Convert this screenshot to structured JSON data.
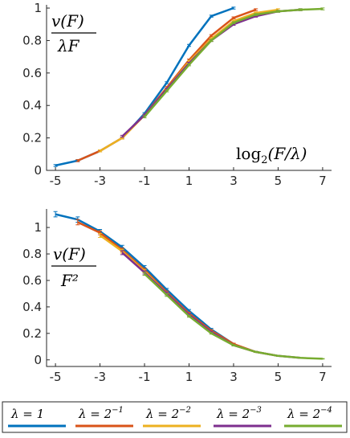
{
  "chart_data": [
    {
      "type": "line",
      "panel": "top",
      "annotation": {
        "numerator": "v(F)",
        "denominator": "λF"
      },
      "xlabel": "log2(F/λ)",
      "ylabel": "",
      "xlim": [
        -5.4,
        7.4
      ],
      "ylim": [
        0,
        1.02
      ],
      "xticks": [
        -5,
        -3,
        -1,
        1,
        3,
        5,
        7
      ],
      "yticks": [
        0,
        0.2,
        0.4,
        0.6,
        0.8,
        1
      ],
      "ytick_labels": [
        "0",
        "0.2",
        "0.4",
        "0.6",
        "0.8",
        "1"
      ],
      "series": [
        {
          "name": "λ = 1",
          "color": "#0072BD",
          "x": [
            -5,
            -4,
            -3,
            -2,
            -1,
            0,
            1,
            2,
            3
          ],
          "y": [
            0.03,
            0.06,
            0.12,
            0.2,
            0.35,
            0.54,
            0.77,
            0.95,
            1.0
          ]
        },
        {
          "name": "λ = 2^-1",
          "color": "#D95319",
          "x": [
            -4,
            -3,
            -2,
            -1,
            0,
            1,
            2,
            3,
            4
          ],
          "y": [
            0.06,
            0.12,
            0.2,
            0.34,
            0.51,
            0.68,
            0.83,
            0.94,
            0.99
          ]
        },
        {
          "name": "λ = 2^-2",
          "color": "#EDB120",
          "x": [
            -3,
            -2,
            -1,
            0,
            1,
            2,
            3,
            4,
            5
          ],
          "y": [
            0.12,
            0.2,
            0.34,
            0.5,
            0.67,
            0.81,
            0.92,
            0.97,
            0.99
          ]
        },
        {
          "name": "λ = 2^-3",
          "color": "#7E2F8E",
          "x": [
            -2,
            -1,
            0,
            1,
            2,
            3,
            4,
            5,
            6
          ],
          "y": [
            0.21,
            0.34,
            0.5,
            0.66,
            0.8,
            0.9,
            0.95,
            0.98,
            0.99
          ]
        },
        {
          "name": "λ = 2^-4",
          "color": "#77AC30",
          "x": [
            -1,
            0,
            1,
            2,
            3,
            4,
            5,
            6,
            7
          ],
          "y": [
            0.33,
            0.49,
            0.65,
            0.8,
            0.91,
            0.96,
            0.98,
            0.99,
            0.995
          ]
        }
      ]
    },
    {
      "type": "line",
      "panel": "bottom",
      "annotation": {
        "numerator": "v(F)",
        "denominator": "F²"
      },
      "xlabel": "",
      "ylabel": "",
      "xlim": [
        -5.4,
        7.4
      ],
      "ylim": [
        -0.05,
        1.14
      ],
      "xticks": [
        -5,
        -3,
        -1,
        1,
        3,
        5,
        7
      ],
      "yticks": [
        0,
        0.2,
        0.4,
        0.6,
        0.8,
        1
      ],
      "ytick_labels": [
        "0",
        "0.2",
        "0.4",
        "0.6",
        "0.8",
        "1"
      ],
      "series": [
        {
          "name": "λ = 1",
          "color": "#0072BD",
          "x": [
            -5,
            -4,
            -3,
            -2,
            -1,
            0,
            1,
            2,
            3
          ],
          "y": [
            1.1,
            1.06,
            0.97,
            0.85,
            0.7,
            0.53,
            0.37,
            0.23,
            0.12
          ],
          "err": [
            0.02,
            0.02,
            0.015,
            0.015,
            0.012,
            0.01,
            0.01,
            0.008,
            0.006
          ]
        },
        {
          "name": "λ = 2^-1",
          "color": "#D95319",
          "x": [
            -4,
            -3,
            -2,
            -1,
            0,
            1,
            2,
            3,
            4
          ],
          "y": [
            1.04,
            0.96,
            0.83,
            0.68,
            0.51,
            0.35,
            0.22,
            0.12,
            0.06
          ],
          "err": [
            0.02,
            0.015,
            0.015,
            0.012,
            0.01,
            0.01,
            0.008,
            0.006,
            0.004
          ]
        },
        {
          "name": "λ = 2^-2",
          "color": "#EDB120",
          "x": [
            -3,
            -2,
            -1,
            0,
            1,
            2,
            3,
            4,
            5
          ],
          "y": [
            0.94,
            0.82,
            0.67,
            0.5,
            0.34,
            0.21,
            0.11,
            0.06,
            0.03
          ],
          "err": [
            0.015,
            0.015,
            0.012,
            0.01,
            0.008,
            0.006,
            0.005,
            0.004,
            0.003
          ]
        },
        {
          "name": "λ = 2^-3",
          "color": "#7E2F8E",
          "x": [
            -2,
            -1,
            0,
            1,
            2,
            3,
            4,
            5,
            6
          ],
          "y": [
            0.81,
            0.66,
            0.5,
            0.34,
            0.21,
            0.11,
            0.06,
            0.03,
            0.015
          ],
          "err": [
            0.015,
            0.012,
            0.01,
            0.008,
            0.006,
            0.005,
            0.004,
            0.003,
            0.002
          ]
        },
        {
          "name": "λ = 2^-4",
          "color": "#77AC30",
          "x": [
            -1,
            0,
            1,
            2,
            3,
            4,
            5,
            6,
            7
          ],
          "y": [
            0.65,
            0.49,
            0.33,
            0.2,
            0.11,
            0.06,
            0.03,
            0.015,
            0.008
          ],
          "err": [
            0.012,
            0.01,
            0.008,
            0.006,
            0.005,
            0.004,
            0.003,
            0.002,
            0.002
          ]
        }
      ]
    }
  ],
  "legend": {
    "placement": "bottom",
    "entries": [
      {
        "base": "λ = 1",
        "exp": "",
        "color": "#0072BD"
      },
      {
        "base": "λ = 2",
        "exp": "−1",
        "color": "#D95319"
      },
      {
        "base": "λ = 2",
        "exp": "−2",
        "color": "#EDB120"
      },
      {
        "base": "λ = 2",
        "exp": "−3",
        "color": "#7E2F8E"
      },
      {
        "base": "λ = 2",
        "exp": "−4",
        "color": "#77AC30"
      }
    ]
  }
}
